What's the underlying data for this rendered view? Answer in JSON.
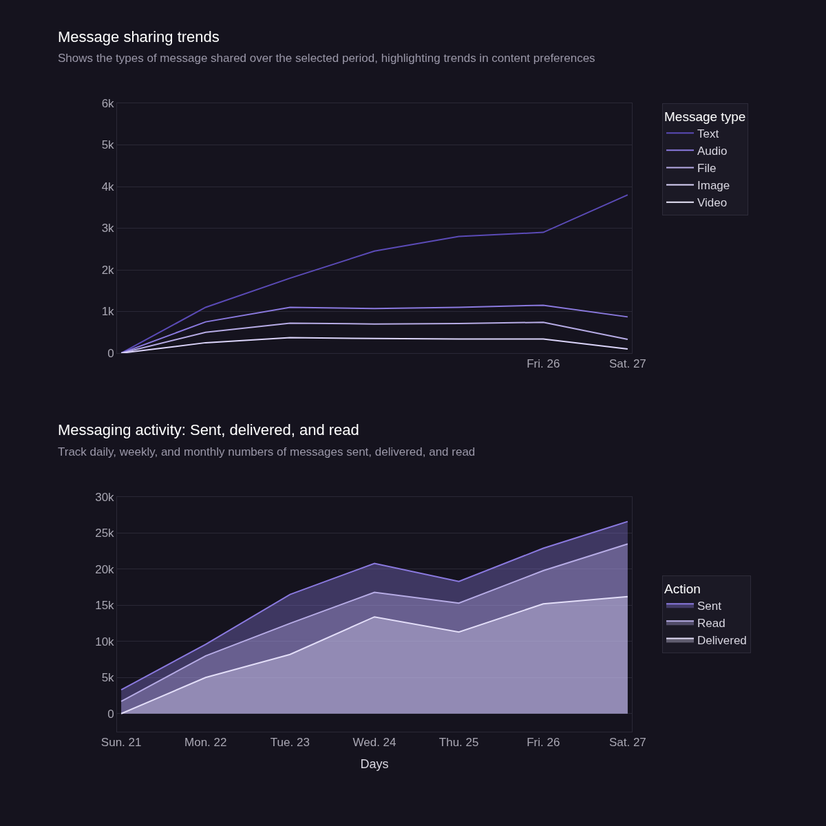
{
  "chart_data": [
    {
      "type": "line",
      "title": "Message sharing trends",
      "subtitle": "Shows the types of message shared over the selected period, highlighting trends in content preferences",
      "legend_title": "Message type",
      "categories": [
        null,
        null,
        null,
        null,
        null,
        "Fri. 26",
        "Sat. 27"
      ],
      "series": [
        {
          "name": "Text",
          "color": "#5b4bb7",
          "values": [
            0,
            1100,
            1800,
            2450,
            2800,
            2900,
            3800
          ]
        },
        {
          "name": "Audio",
          "color": "#8b7ae0",
          "values": [
            0,
            750,
            1100,
            1070,
            1100,
            1150,
            870
          ]
        },
        {
          "name": "File",
          "color": "#b7ace6",
          "values": [
            0,
            500,
            720,
            700,
            710,
            740,
            330
          ]
        },
        {
          "name": "Image",
          "color": "#dcd5fb",
          "values": [
            0,
            250,
            370,
            350,
            340,
            340,
            100
          ]
        },
        {
          "name": "Video",
          "color": "#ece9fd",
          "values": [
            null,
            null,
            null,
            null,
            null,
            null,
            null
          ]
        }
      ],
      "ylim": [
        0,
        6000
      ],
      "yticks": [
        0,
        {
          "value": 1000,
          "label": "1k"
        },
        {
          "value": 2000,
          "label": "2k"
        },
        {
          "value": 3000,
          "label": "3k"
        },
        {
          "value": 4000,
          "label": "4k"
        },
        {
          "value": 5000,
          "label": "5k"
        },
        {
          "value": 6000,
          "label": "6k"
        }
      ],
      "grid": "y",
      "legend": "top right",
      "marker": "none",
      "line_style": "solid"
    },
    {
      "type": "area",
      "title": "Messaging activity: Sent, delivered, and read",
      "subtitle": "Track daily, weekly, and monthly numbers of messages sent, delivered, and read",
      "xlabel": "Days",
      "legend_title": "Action",
      "categories": [
        "Sun. 21",
        "Mon. 22",
        "Tue. 23",
        "Wed. 24",
        "Thu. 25",
        "Fri. 26",
        "Sat. 27"
      ],
      "series": [
        {
          "name": "Sent",
          "color": "#8b7ae0",
          "values": [
            3300,
            9600,
            16500,
            20800,
            18300,
            22900,
            26600
          ]
        },
        {
          "name": "Read",
          "color": "#b7ace6",
          "values": [
            1700,
            8000,
            12500,
            16800,
            15300,
            19800,
            23500
          ]
        },
        {
          "name": "Delivered",
          "color": "#e3def8",
          "values": [
            0,
            5000,
            8200,
            13400,
            11300,
            15200,
            16200
          ]
        }
      ],
      "ylim": [
        -2500,
        30000
      ],
      "yticks": [
        0,
        {
          "value": 5000,
          "label": "5k"
        },
        {
          "value": 10000,
          "label": "10k"
        },
        {
          "value": 15000,
          "label": "15k"
        },
        {
          "value": 20000,
          "label": "20k"
        },
        {
          "value": 25000,
          "label": "25k"
        },
        {
          "value": 30000,
          "label": "30k"
        }
      ],
      "grid": "y",
      "legend": "right",
      "marker": "none",
      "line_style": "solid"
    }
  ]
}
